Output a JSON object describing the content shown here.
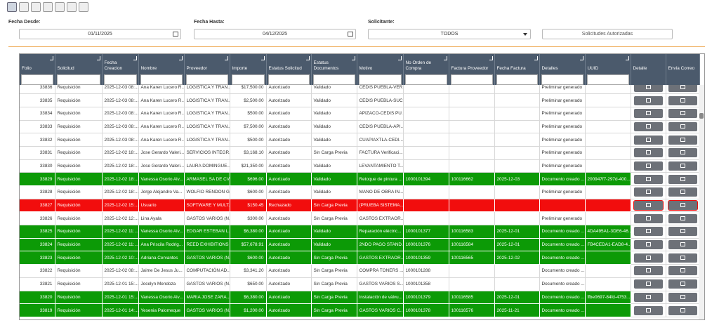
{
  "filters": {
    "from_label": "Fecha Desde:",
    "from_value": "01/11/2025",
    "to_label": "Fecha Hasta:",
    "to_value": "04/12/2025",
    "requester_label": "Solicitante:",
    "requester_value": "TODOS",
    "button": "Solicitudes Autorizadas"
  },
  "table": {
    "columns": [
      "Folio",
      "Solicitud",
      "Fecha Creacion",
      "Nombre",
      "Proveedor",
      "Importe",
      "Estatus Solicitud",
      "Estatus Documentos",
      "Motivo",
      "No Orden de Compra",
      "Factura Proveedor",
      "Fecha Factura",
      "Detalles",
      "UUID",
      "Detalle",
      "Envía Correo"
    ],
    "rows": [
      {
        "color": "#ffffff",
        "cells": [
          "33836",
          "Requisición",
          "2025-12-03 08:...",
          "Ana Karen Lucero R...",
          "LOGISTICA Y TRAN...",
          "$17,500.00",
          "Autorizado",
          "Validado",
          "CEDIS PUEBLA-VER...",
          null,
          null,
          null,
          "Preliminar generado",
          null
        ]
      },
      {
        "color": "#ffffff",
        "cells": [
          "33835",
          "Requisición",
          "2025-12-03 08:...",
          "Ana Karen Lucero R...",
          "LOGISTICA Y TRAN...",
          "$2,500.00",
          "Autorizado",
          "Validado",
          "CEDIS PUEBLA-SUC...",
          null,
          null,
          null,
          "Preliminar generado",
          null
        ]
      },
      {
        "color": "#ffffff",
        "cells": [
          "33834",
          "Requisición",
          "2025-12-03 08:...",
          "Ana Karen Lucero R...",
          "LOGISTICA Y TRAN...",
          "$500.00",
          "Autorizado",
          "Validado",
          "APIZACO-CEDIS PU...",
          null,
          null,
          null,
          "Preliminar generado",
          null
        ]
      },
      {
        "color": "#ffffff",
        "cells": [
          "33833",
          "Requisición",
          "2025-12-03 08:...",
          "Ana Karen Lucero R...",
          "LOGISTICA Y TRAN...",
          "$7,500.00",
          "Autorizado",
          "Validado",
          "CEDIS PUEBLA-API...",
          null,
          null,
          null,
          "Preliminar generado",
          null
        ]
      },
      {
        "color": "#ffffff",
        "cells": [
          "33832",
          "Requisición",
          "2025-12-03 08:...",
          "Ana Karen Lucero R...",
          "LOGISTICA Y TRAN...",
          "$500.00",
          "Autorizado",
          "Validado",
          "CUAPIAXTLA-CEDI...",
          null,
          null,
          null,
          "Preliminar generado",
          null
        ]
      },
      {
        "color": "#ffffff",
        "cells": [
          "33831",
          "Requisición",
          "2025-12-02 18:...",
          "Jose Gerardo Valeri...",
          "SERVICIOS INTEGR...",
          "$3,168.10",
          "Autorizado",
          "Sin Carga Previa",
          "FACTURA Verificaci...",
          null,
          null,
          null,
          "Preliminar generado",
          null
        ]
      },
      {
        "color": "#ffffff",
        "cells": [
          "33830",
          "Requisición",
          "2025-12-02 18:...",
          "Jose Gerardo Valeri...",
          "LAURA DOMINGUE...",
          "$21,350.00",
          "Autorizado",
          "Validado",
          "LEVANTAMIENTO T...",
          null,
          null,
          null,
          "Preliminar generado",
          null
        ]
      },
      {
        "color": "#0c9a06",
        "cells": [
          "33829",
          "Requisición",
          "2025-12-02 18:...",
          "Vanessa Osorio Alv...",
          "ARMASEL SA DE CV",
          "$696.00",
          "Autorizado",
          "Validado",
          "Retoque de pintura ...",
          "1000101394",
          "100116662",
          "2025-12-03",
          "Documento creado ...",
          "200947f7-297d-400..."
        ]
      },
      {
        "color": "#ffffff",
        "cells": [
          "33828",
          "Requisición",
          "2025-12-02 18:...",
          "Jorge Alejandro Va...",
          "WOLFIO RENDON G...",
          "$600.00",
          "Autorizado",
          "Validado",
          "MANO DE OBRA IN...",
          null,
          null,
          null,
          "Preliminar generado",
          null
        ]
      },
      {
        "color": "#f20d0d",
        "cells": [
          "33827",
          "Requisición",
          "2025-12-02 15:...",
          "Usuario",
          "SOFTWARE Y MULT...",
          "$150.45",
          "Rechazado",
          "Sin Carga Previa",
          "(PRUEBA SISTEMA...",
          null,
          null,
          null,
          null,
          null
        ]
      },
      {
        "color": "#ffffff",
        "cells": [
          "33826",
          "Requisición",
          "2025-12-02 12:...",
          "Lina Ayala",
          "GASTOS VARIOS (N...",
          "$300.00",
          "Autorizado",
          "Sin Carga Previa",
          "GASTOS EXTRAOR...",
          null,
          null,
          null,
          "Preliminar generado",
          null
        ]
      },
      {
        "color": "#0c9a06",
        "cells": [
          "33825",
          "Requisición",
          "2025-12-02 11:...",
          "Vanessa Osorio Alv...",
          "EDGAR ESTEBAN L...",
          "$6,380.00",
          "Autorizado",
          "Validado",
          "Reparación eléctric...",
          "1000101377",
          "100116583",
          "2025-12-01",
          "Documento creado ...",
          "4DA495A1-3DE6-46..."
        ]
      },
      {
        "color": "#0c9a06",
        "cells": [
          "33824",
          "Requisición",
          "2025-12-02 11:...",
          "Ana Priscila Rodrig...",
          "REED EXHIBITIONS ...",
          "$57,678.91",
          "Autorizado",
          "Validado",
          "2NDO PAGO STAND...",
          "1000101376",
          "100116584",
          "2025-12-01",
          "Documento creado ...",
          "FB4CEDA1-EAD8-4..."
        ]
      },
      {
        "color": "#0c9a06",
        "cells": [
          "33823",
          "Requisición",
          "2025-12-02 10:...",
          "Adriana Cervantes",
          "GASTOS VARIOS (N...",
          "$600.00",
          "Autorizado",
          "Sin Carga Previa",
          "GASTOS EXTRAOR...",
          "1000101359",
          "100116565",
          "2025-12-02",
          "Documento creado ...",
          null
        ]
      },
      {
        "color": "#ffffff",
        "cells": [
          "33822",
          "Requisición",
          "2025-12-02 08:...",
          "Jaime De Jesus Ju...",
          "COMPUTACIÓN AD...",
          "$3,341.20",
          "Autorizado",
          "Sin Carga Previa",
          "COMPRA TONERS ...",
          "1000101288",
          null,
          null,
          "Documento creado ...",
          null
        ]
      },
      {
        "color": "#ffffff",
        "cells": [
          "33821",
          "Requisición",
          "2025-12-01 15:...",
          "Jocelyn Mendoza",
          "GASTOS VARIOS (N...",
          "$650.00",
          "Autorizado",
          "Sin Carga Previa",
          "GASTOS VARIOS S...",
          "1000101358",
          null,
          null,
          "Documento creado ...",
          null
        ]
      },
      {
        "color": "#0c9a06",
        "cells": [
          "33820",
          "Requisición",
          "2025-12-01 15:...",
          "Vanessa Osorio Alv...",
          "MARIA JOSE ZARA...",
          "$6,380.00",
          "Autorizado",
          "Sin Carga Previa",
          "Instalación de válvu...",
          "1000101379",
          "100116585",
          "2025-12-01",
          "Documento creado ...",
          "ffbe0697-84fd-4753..."
        ]
      },
      {
        "color": "#0c9a06",
        "cells": [
          "33819",
          "Requisición",
          "2025-12-01 14:...",
          "Yesenia Palomeque",
          "GASTOS VARIOS (N...",
          "$1,200.00",
          "Autorizado",
          "Sin Carga Previa",
          "GASTOS VARIOS C...",
          "1000101378",
          "100116576",
          "2025-11-21",
          "Documento creado ...",
          null
        ]
      }
    ]
  }
}
